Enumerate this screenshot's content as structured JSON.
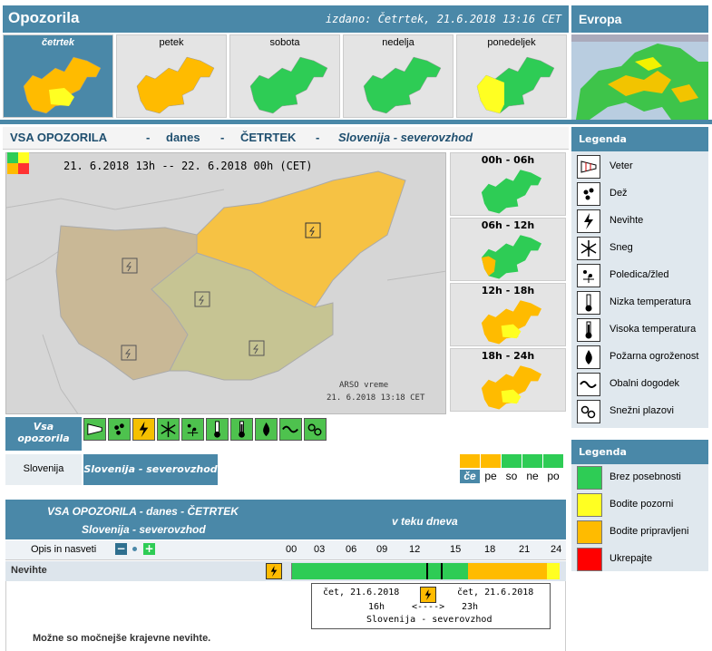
{
  "header": {
    "title": "Opozorila",
    "issued": "izdano: Četrtek, 21.6.2018 13:16 CET"
  },
  "europe": {
    "title": "Evropa"
  },
  "days": [
    {
      "label": "četrtek",
      "selected": true
    },
    {
      "label": "petek",
      "selected": false
    },
    {
      "label": "sobota",
      "selected": false
    },
    {
      "label": "nedelja",
      "selected": false
    },
    {
      "label": "ponedeljek",
      "selected": false
    }
  ],
  "title_line": {
    "a": "VSA OPOZORILA",
    "dash": "-",
    "b": "danes",
    "c": "ČETRTEK",
    "d": "Slovenija - severovzhod"
  },
  "map": {
    "date_range": "21. 6.2018 13h -- 22. 6.2018 00h   (CET)",
    "credit": "ARSO vreme",
    "timestamp": "21. 6.2018 13:18 CET"
  },
  "periods": [
    "00h - 06h",
    "06h - 12h",
    "12h - 18h",
    "18h - 24h"
  ],
  "category": {
    "line1": "Vsa",
    "line2": "opozorila"
  },
  "category_icons": [
    "wind-icon",
    "rain-icon",
    "thunderstorm-icon",
    "snow-icon",
    "ice-icon",
    "low-temperature-icon",
    "high-temperature-icon",
    "forest-fire-icon",
    "coastal-event-icon",
    "avalanche-icon"
  ],
  "regions": {
    "a": "Slovenija",
    "b": "Slovenija - severovzhod"
  },
  "mini_days": [
    "če",
    "pe",
    "so",
    "ne",
    "po"
  ],
  "legend1": {
    "title": "Legenda",
    "items": [
      {
        "icon": "wind-icon",
        "label": "Veter"
      },
      {
        "icon": "rain-icon",
        "label": "Dež"
      },
      {
        "icon": "thunderstorm-icon",
        "label": "Nevihte"
      },
      {
        "icon": "snow-icon",
        "label": "Sneg"
      },
      {
        "icon": "ice-icon",
        "label": "Poledica/žled"
      },
      {
        "icon": "low-temperature-icon",
        "label": "Nizka temperatura"
      },
      {
        "icon": "high-temperature-icon",
        "label": "Visoka temperatura"
      },
      {
        "icon": "forest-fire-icon",
        "label": "Požarna ogroženost"
      },
      {
        "icon": "coastal-event-icon",
        "label": "Obalni dogodek"
      },
      {
        "icon": "avalanche-icon",
        "label": "Snežni plazovi"
      }
    ]
  },
  "legend2": {
    "title": "Legenda",
    "items": [
      {
        "color": "#2ecc55",
        "label": "Brez posebnosti"
      },
      {
        "color": "#ffff22",
        "label": "Bodite pozorni"
      },
      {
        "color": "#ffbb00",
        "label": "Bodite pripravljeni"
      },
      {
        "color": "#ff0000",
        "label": "Ukrepajte"
      }
    ]
  },
  "bottom": {
    "a": "VSA OPOZORILA - danes - ČETRTEK",
    "b": "Slovenija - severovzhod",
    "c": "v teku dneva"
  },
  "scale": {
    "opis": "Opis in nasveti",
    "minus": "−",
    "plus": "+",
    "ticks": [
      "00",
      "03",
      "06",
      "09",
      "12",
      "15",
      "18",
      "21",
      "24"
    ]
  },
  "timeline": {
    "label": "Nevihte",
    "green_to_hour": 16,
    "orange_to_hour": 23,
    "yellow_to_hour": 24
  },
  "popup": {
    "from": "čet, 21.6.2018",
    "to": "čet, 21.6.2018",
    "h_from": "16h",
    "arrow": "<---->",
    "h_to": "23h",
    "region": "Slovenija - severovzhod"
  },
  "description": "Možne so močnejše krajevne nevihte.",
  "colors": {
    "green": "#2ecc55",
    "yellow": "#ffff22",
    "orange": "#ffbb00",
    "red": "#ff0000",
    "accent": "#4a88a8"
  }
}
